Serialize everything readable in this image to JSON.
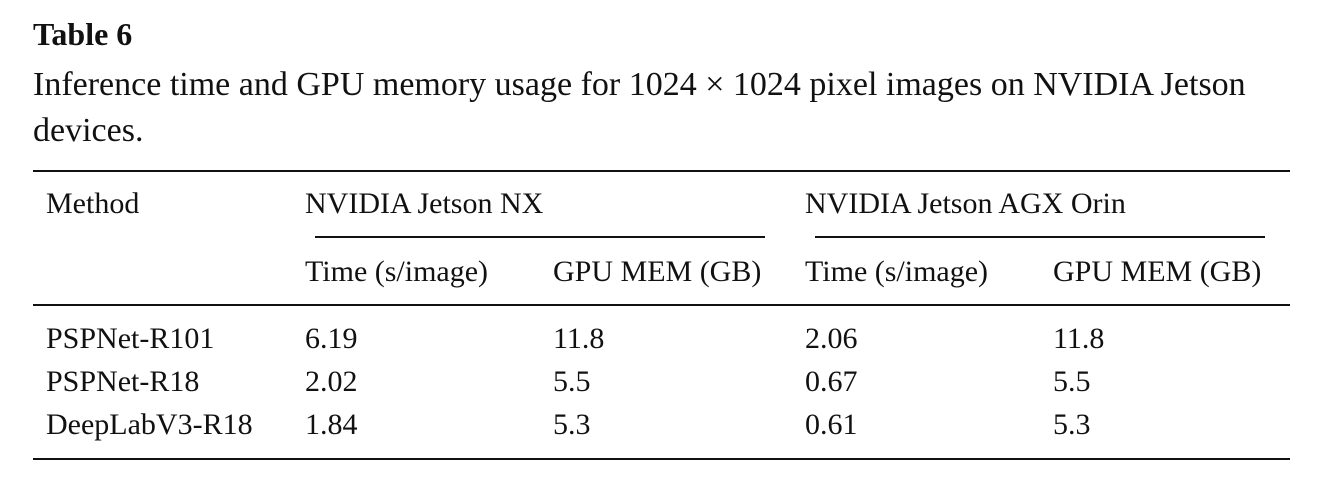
{
  "label": "Table 6",
  "caption": "Inference time and GPU memory usage for 1024 × 1024 pixel images on NVIDIA Jetson devices.",
  "table": {
    "method_header": "Method",
    "groups": [
      "NVIDIA Jetson NX",
      "NVIDIA Jetson AGX Orin"
    ],
    "subheaders": [
      "Time (s/image)",
      "GPU MEM (GB)",
      "Time (s/image)",
      "GPU MEM (GB)"
    ],
    "rows": [
      [
        "PSPNet-R101",
        "6.19",
        "11.8",
        "2.06",
        "11.8"
      ],
      [
        "PSPNet-R18",
        "2.02",
        "5.5",
        "0.67",
        "5.5"
      ],
      [
        "DeepLabV3-R18",
        "1.84",
        "5.3",
        "0.61",
        "5.3"
      ]
    ]
  }
}
